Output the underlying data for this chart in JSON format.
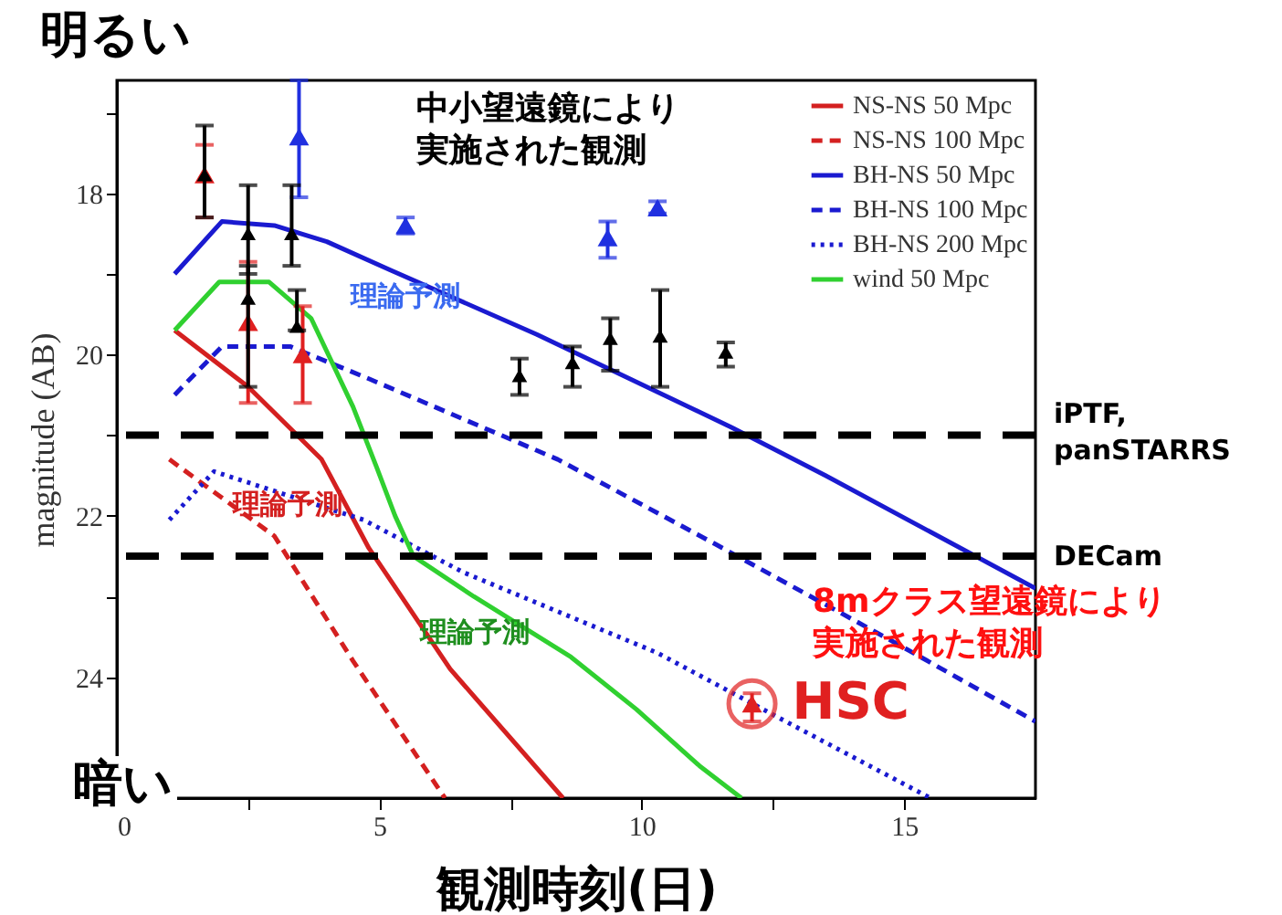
{
  "chart_data": {
    "type": "line",
    "xlabel": "観測時刻(日)",
    "ylabel": "magnitude (AB)",
    "xlim": [
      0,
      17.5
    ],
    "xticks": [
      0,
      {
        "value": 2.5,
        "label": null
      },
      5,
      {
        "value": 7.5,
        "label": null
      },
      10,
      {
        "value": 12.5,
        "label": null
      },
      15
    ],
    "ylim": [
      25.5,
      16.6
    ],
    "yticks": [
      {
        "value": 17,
        "label": null
      },
      18,
      {
        "value": 19,
        "label": null
      },
      20,
      {
        "value": 21,
        "label": null
      },
      22,
      {
        "value": 23,
        "label": null
      },
      24,
      {
        "value": 25,
        "label": null
      }
    ],
    "legend": "top right",
    "grid": false,
    "series": [
      {
        "name": "NS-NS 50 Mpc",
        "color": "#d42020",
        "line_style": "solid",
        "x": [
          1.1,
          2.5,
          3.9,
          4.8,
          6.35,
          8.5
        ],
        "values": [
          19.7,
          20.4,
          21.3,
          22.4,
          23.9,
          25.5
        ]
      },
      {
        "name": "NS-NS 100 Mpc",
        "color": "#d42020",
        "line_style": "dashed",
        "x": [
          1,
          3,
          4.5,
          6.25
        ],
        "values": [
          21.3,
          22.25,
          23.8,
          25.5
        ]
      },
      {
        "name": "BH-NS 50 Mpc",
        "color": "#1a1ad0",
        "line_style": "solid",
        "x": [
          1.1,
          2,
          3,
          4,
          5.2,
          8,
          11.7,
          13.5,
          17.5
        ],
        "values": [
          19.0,
          18.35,
          18.4,
          18.6,
          18.95,
          19.75,
          20.9,
          21.5,
          22.9
        ]
      },
      {
        "name": "BH-NS 100 Mpc",
        "color": "#1a1ad0",
        "line_style": "dashed",
        "x": [
          1.1,
          2,
          3.3,
          4.8,
          8.4,
          11.4,
          14.9,
          17.5
        ],
        "values": [
          20.5,
          19.9,
          19.9,
          20.3,
          21.3,
          22.35,
          23.6,
          24.55
        ]
      },
      {
        "name": "BH-NS 200 Mpc",
        "color": "#1a1ad0",
        "line_style": "dotted",
        "x": [
          1,
          1.85,
          4.7,
          6.6,
          10.3,
          12.6,
          15.5
        ],
        "values": [
          22.05,
          21.45,
          22.05,
          22.7,
          23.7,
          24.5,
          25.5
        ]
      },
      {
        "name": "wind 50 Mpc",
        "color": "#30d030",
        "line_style": "solid",
        "x": [
          1.1,
          1.95,
          2.9,
          3.7,
          4.5,
          4.95,
          5.3,
          5.65,
          6.8,
          8.65,
          9.9,
          11.1,
          11.9
        ],
        "values": [
          19.7,
          19.1,
          19.1,
          19.55,
          20.65,
          21.4,
          22.0,
          22.5,
          23.0,
          23.75,
          24.4,
          25.1,
          25.5
        ]
      },
      {
        "type": "scatter",
        "marker": "triangle",
        "color": "#000000",
        "x": [
          1.67,
          2.5,
          2.5,
          3.33,
          3.43,
          7.67,
          8.68,
          9.4,
          10.35,
          11.6
        ],
        "values": [
          17.77,
          18.5,
          19.3,
          18.5,
          19.65,
          20.26,
          20.1,
          19.8,
          19.77,
          19.97
        ],
        "errors": [
          [
            17.16,
            18.3
          ],
          [
            17.9,
            19.0
          ],
          [
            18.9,
            20.4
          ],
          [
            17.9,
            18.9
          ],
          [
            19.2,
            19.7
          ],
          [
            20.05,
            20.5
          ],
          [
            19.9,
            20.4
          ],
          [
            19.55,
            20.2
          ],
          [
            19.2,
            20.4
          ],
          [
            19.85,
            20.15
          ]
        ]
      },
      {
        "type": "scatter",
        "marker": "triangle",
        "color": "#e02020",
        "x": [
          1.67,
          2.5,
          3.54,
          12.1
        ],
        "values": [
          17.77,
          19.6,
          20.0,
          24.33
        ],
        "errors": [
          [
            17.4,
            18.3
          ],
          [
            18.85,
            20.6
          ],
          [
            19.4,
            20.6
          ],
          [
            24.2,
            24.55
          ]
        ]
      },
      {
        "type": "scatter",
        "marker": "triangle",
        "color": "#2030e0",
        "x": [
          3.47,
          5.5,
          9.35,
          10.3
        ],
        "values": [
          17.3,
          18.4,
          18.55,
          18.18
        ],
        "errors": [
          [
            16.6,
            18.05
          ],
          [
            18.3,
            18.5
          ],
          [
            18.35,
            18.8
          ],
          [
            18.1,
            18.25
          ]
        ]
      }
    ],
    "ref_lines": [
      {
        "axis": "y",
        "value": 21.0,
        "label": "iPTF,\npanSTARRS",
        "color": "#000000",
        "line_style": "dashed"
      },
      {
        "axis": "y",
        "value": 22.5,
        "label": "DECam",
        "color": "#000000",
        "line_style": "dashed"
      }
    ],
    "annotations": [
      "明るい",
      "暗い",
      "中小望遠鏡により",
      "実施された観測",
      "理論予測",
      "8mクラス望遠鏡により",
      "実施された観測",
      {
        "text": "理論予測",
        "x": 3.26,
        "y": 21.85
      },
      "理論予測",
      {
        "text": "HSC",
        "x": 12.1,
        "y": 24.33
      }
    ]
  }
}
